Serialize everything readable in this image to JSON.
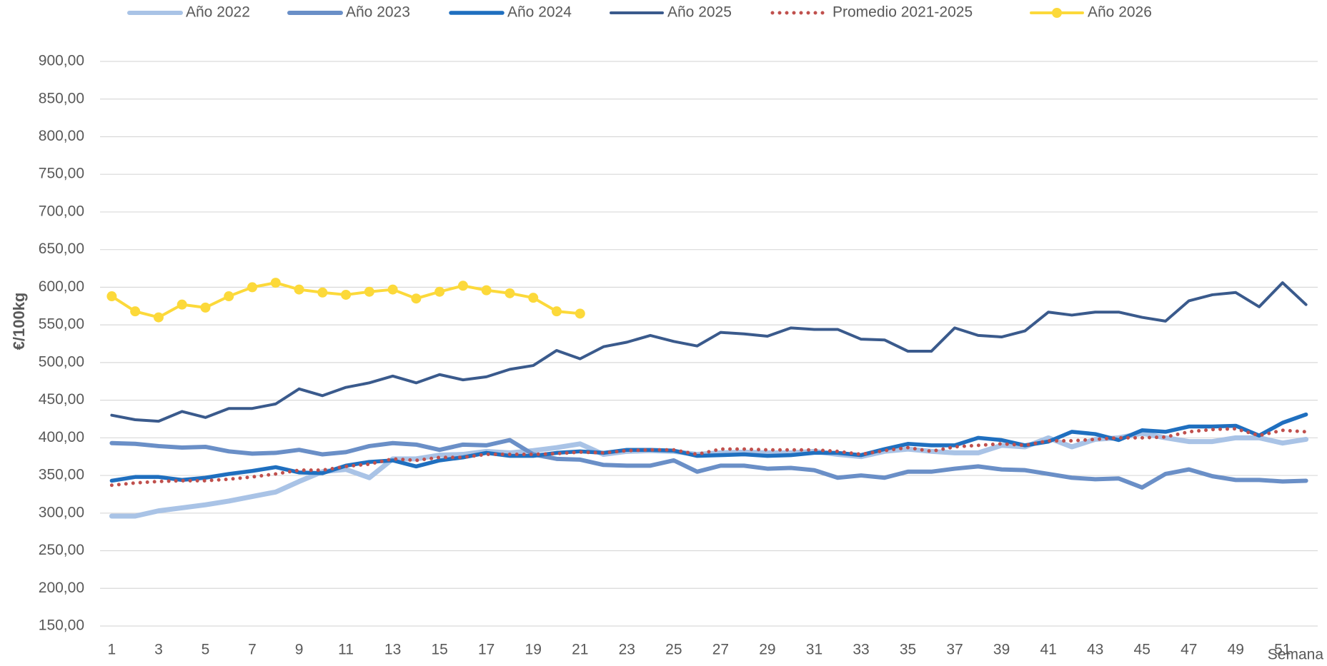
{
  "chart_data": {
    "type": "line",
    "ylabel": "€/100kg",
    "xlabel": "Semana",
    "x": [
      1,
      2,
      3,
      4,
      5,
      6,
      7,
      8,
      9,
      10,
      11,
      12,
      13,
      14,
      15,
      16,
      17,
      18,
      19,
      20,
      21,
      22,
      23,
      24,
      25,
      26,
      27,
      28,
      29,
      30,
      31,
      32,
      33,
      34,
      35,
      36,
      37,
      38,
      39,
      40,
      41,
      42,
      43,
      44,
      45,
      46,
      47,
      48,
      49,
      50,
      51,
      52
    ],
    "xlim": [
      0.5,
      52.5
    ],
    "xticks": [
      1,
      3,
      5,
      7,
      9,
      11,
      13,
      15,
      17,
      19,
      21,
      23,
      25,
      27,
      29,
      31,
      33,
      35,
      37,
      39,
      41,
      43,
      45,
      47,
      49,
      51
    ],
    "ylim": [
      150,
      900
    ],
    "yticks": [
      {
        "value": 150,
        "label": "150,00"
      },
      {
        "value": 200,
        "label": "200,00"
      },
      {
        "value": 250,
        "label": "250,00"
      },
      {
        "value": 300,
        "label": "300,00"
      },
      {
        "value": 350,
        "label": "350,00"
      },
      {
        "value": 400,
        "label": "400,00"
      },
      {
        "value": 450,
        "label": "450,00"
      },
      {
        "value": 500,
        "label": "500,00"
      },
      {
        "value": 550,
        "label": "550,00"
      },
      {
        "value": 600,
        "label": "600,00"
      },
      {
        "value": 650,
        "label": "650,00"
      },
      {
        "value": 700,
        "label": "700,00"
      },
      {
        "value": 750,
        "label": "750,00"
      },
      {
        "value": 800,
        "label": "800,00"
      },
      {
        "value": 850,
        "label": "850,00"
      },
      {
        "value": 900,
        "label": "900,00"
      }
    ],
    "grid": true,
    "legend": "top",
    "series": [
      {
        "name": "Año 2022",
        "color": "#a9c3e6",
        "values": [
          296,
          296,
          303,
          307,
          311,
          316,
          322,
          328,
          342,
          355,
          358,
          347,
          372,
          372,
          377,
          378,
          382,
          380,
          383,
          387,
          392,
          378,
          382,
          383,
          382,
          378,
          380,
          381,
          380,
          380,
          382,
          378,
          375,
          382,
          385,
          382,
          380,
          380,
          390,
          388,
          400,
          388,
          398,
          400,
          406,
          400,
          395,
          395,
          400,
          400,
          393,
          398
        ]
      },
      {
        "name": "Año 2023",
        "color": "#6a8fc7",
        "values": [
          393,
          392,
          389,
          387,
          388,
          382,
          379,
          380,
          384,
          378,
          381,
          389,
          393,
          391,
          384,
          391,
          390,
          397,
          378,
          372,
          371,
          364,
          363,
          363,
          370,
          355,
          363,
          363,
          359,
          360,
          357,
          347,
          350,
          347,
          355,
          355,
          359,
          362,
          358,
          357,
          352,
          347,
          345,
          346,
          334,
          352,
          358,
          349,
          344,
          344,
          342,
          343
        ]
      },
      {
        "name": "Año 2024",
        "color": "#1f6fbf",
        "values": [
          343,
          348,
          348,
          344,
          347,
          352,
          356,
          361,
          354,
          353,
          363,
          368,
          370,
          362,
          370,
          374,
          380,
          376,
          376,
          380,
          382,
          380,
          384,
          384,
          383,
          376,
          377,
          378,
          376,
          377,
          380,
          380,
          377,
          385,
          392,
          390,
          390,
          400,
          397,
          390,
          395,
          408,
          405,
          397,
          410,
          408,
          415,
          415,
          416,
          403,
          420,
          431
        ]
      },
      {
        "name": "Año 2025",
        "color": "#3a5a8c",
        "values": [
          430,
          424,
          422,
          435,
          427,
          439,
          439,
          445,
          465,
          456,
          467,
          473,
          482,
          473,
          484,
          477,
          481,
          491,
          496,
          516,
          505,
          521,
          527,
          536,
          528,
          522,
          540,
          538,
          535,
          546,
          544,
          544,
          531,
          530,
          515,
          515,
          546,
          536,
          534,
          542,
          567,
          563,
          567,
          567,
          560,
          555,
          582,
          590,
          593,
          574,
          606,
          577
        ]
      },
      {
        "name": "Promedio 2021-2025",
        "color": "#c0504d",
        "dotted": true,
        "values": [
          337,
          340,
          342,
          343,
          343,
          345,
          348,
          352,
          357,
          357,
          362,
          365,
          372,
          370,
          374,
          374,
          378,
          378,
          378,
          379,
          381,
          380,
          383,
          384,
          384,
          378,
          385,
          385,
          384,
          384,
          384,
          382,
          378,
          383,
          387,
          382,
          388,
          390,
          392,
          390,
          396,
          396,
          398,
          400,
          400,
          401,
          408,
          411,
          412,
          403,
          410,
          408
        ]
      },
      {
        "name": "Año 2026",
        "color": "#fcd93a",
        "markers": true,
        "values": [
          588,
          568,
          560,
          577,
          573,
          588,
          600,
          606,
          597,
          593,
          590,
          594,
          597,
          585,
          594,
          602,
          596,
          592,
          586,
          568,
          565,
          null,
          null,
          null,
          null,
          null,
          null,
          null,
          null,
          null,
          null,
          null,
          null,
          null,
          null,
          null,
          null,
          null,
          null,
          null,
          null,
          null,
          null,
          null,
          null,
          null,
          null,
          null,
          null,
          null,
          null,
          null
        ]
      }
    ]
  }
}
